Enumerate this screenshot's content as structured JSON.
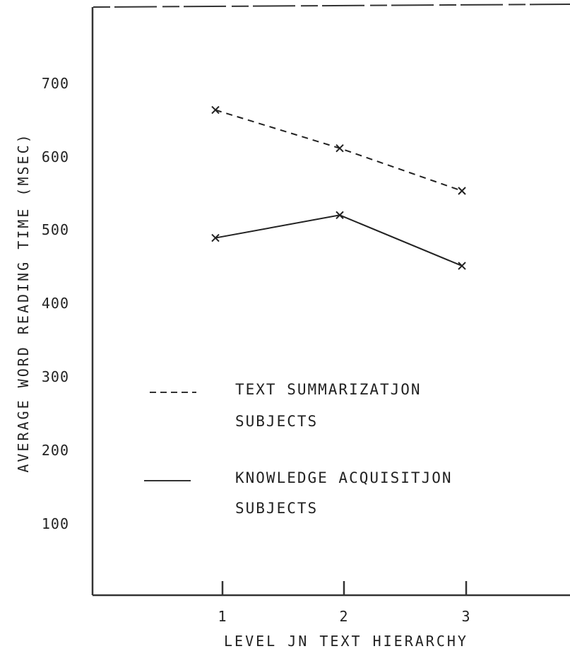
{
  "colors": {
    "ink": "#222222",
    "frame": "#333333"
  },
  "chart_data": {
    "type": "line",
    "title": "",
    "xlabel": "LEVEL JN TEXT HIERARCHY",
    "ylabel": "AVERAGE WORD READING TIME (MSEC)",
    "categories": [
      "1",
      "2",
      "3"
    ],
    "y_ticks": [
      "700",
      "600",
      "500",
      "400",
      "300",
      "200",
      "100"
    ],
    "ylim": [
      0,
      800
    ],
    "grid": false,
    "legend_position": "bottom-left",
    "series": [
      {
        "name": "TEXT SUMMARIZATJON SUBJECTS",
        "name_lines": [
          "TEXT SUMMARIZATJON",
          "SUBJECTS"
        ],
        "line_style": "dashed",
        "marker": "x",
        "values": [
          660,
          608,
          550
        ]
      },
      {
        "name": "KNOWLEDGE ACQUISITJON SUBJECTS",
        "name_lines": [
          "KNOWLEDGE ACQUISITJON",
          "SUBJECTS"
        ],
        "line_style": "solid",
        "marker": "x",
        "values": [
          486,
          517,
          448
        ]
      }
    ]
  }
}
